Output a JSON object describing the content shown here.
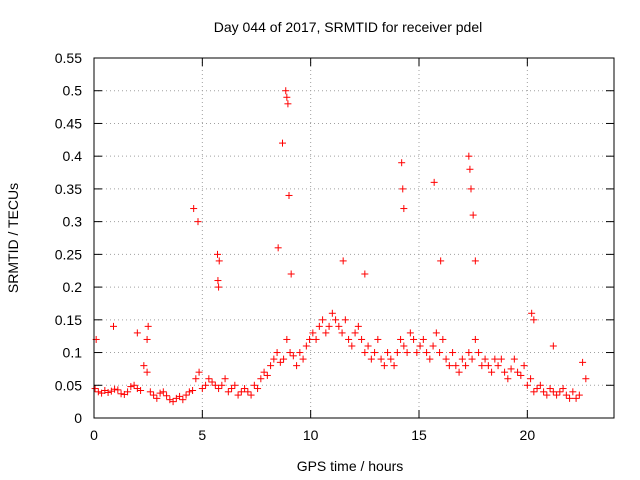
{
  "chart_data": {
    "type": "scatter",
    "title": "Day 044 of 2017, SRMTID for receiver pdel",
    "xlabel": "GPS time / hours",
    "ylabel": "SRMTID / TECUs",
    "xlim": [
      0,
      24
    ],
    "ylim": [
      0,
      0.55
    ],
    "xticks": [
      0,
      5,
      10,
      15,
      20
    ],
    "xtick_labels": [
      "0",
      "5",
      "10",
      "15",
      "20"
    ],
    "yticks": [
      0,
      0.05,
      0.1,
      0.15,
      0.2,
      0.25,
      0.3,
      0.35,
      0.4,
      0.45,
      0.5,
      0.55
    ],
    "ytick_labels": [
      "0",
      "0.05",
      "0.1",
      "0.15",
      "0.2",
      "0.25",
      "0.3",
      "0.35",
      "0.4",
      "0.45",
      "0.5",
      "0.55"
    ],
    "grid": true,
    "marker": "+",
    "color": "#ff0000",
    "series": [
      {
        "name": "SRMTID",
        "x": [
          0.05,
          0.2,
          0.35,
          0.5,
          0.65,
          0.8,
          0.95,
          1.1,
          1.25,
          1.4,
          1.55,
          1.7,
          1.85,
          2.0,
          2.15,
          2.3,
          2.45,
          2.6,
          2.75,
          2.9,
          3.05,
          3.2,
          3.35,
          3.5,
          3.65,
          3.8,
          3.95,
          4.1,
          4.25,
          4.4,
          4.55,
          4.7,
          4.85,
          5.0,
          5.15,
          5.3,
          5.45,
          5.6,
          5.75,
          5.9,
          6.05,
          6.2,
          6.35,
          6.5,
          6.65,
          6.8,
          6.95,
          7.1,
          7.25,
          7.4,
          7.55,
          7.7,
          7.85,
          8.0,
          8.15,
          8.3,
          8.45,
          8.6,
          8.75,
          8.9,
          9.05,
          9.2,
          9.35,
          9.5,
          9.65,
          9.8,
          9.95,
          10.1,
          10.25,
          10.4,
          10.55,
          10.7,
          10.85,
          11.0,
          11.15,
          11.3,
          11.45,
          11.6,
          11.75,
          11.9,
          12.05,
          12.2,
          12.35,
          12.5,
          12.65,
          12.8,
          12.95,
          13.1,
          13.25,
          13.4,
          13.55,
          13.7,
          13.85,
          14.0,
          14.15,
          14.3,
          14.45,
          14.6,
          14.75,
          14.9,
          15.05,
          15.2,
          15.35,
          15.5,
          15.65,
          15.8,
          15.95,
          16.1,
          16.25,
          16.4,
          16.55,
          16.7,
          16.85,
          17.0,
          17.15,
          17.3,
          17.45,
          17.6,
          17.75,
          17.9,
          18.05,
          18.2,
          18.35,
          18.5,
          18.65,
          18.8,
          18.95,
          19.1,
          19.25,
          19.4,
          19.55,
          19.7,
          19.85,
          20.0,
          20.15,
          20.3,
          20.45,
          20.6,
          20.75,
          20.9,
          21.05,
          21.2,
          21.35,
          21.5,
          21.65,
          21.8,
          21.95,
          22.1,
          22.25,
          22.4,
          22.55,
          22.7,
          0.1,
          0.9,
          2.0,
          2.45,
          2.5,
          4.6,
          4.8,
          5.7,
          5.72,
          5.75,
          5.78,
          8.5,
          8.7,
          8.85,
          8.9,
          8.95,
          9.0,
          9.1,
          11.5,
          12.5,
          14.2,
          14.25,
          14.3,
          15.7,
          16.0,
          17.3,
          17.35,
          17.4,
          17.5,
          17.6,
          20.2,
          20.3,
          21.2
        ],
        "y": [
          0.045,
          0.04,
          0.038,
          0.042,
          0.039,
          0.041,
          0.044,
          0.043,
          0.037,
          0.036,
          0.04,
          0.048,
          0.05,
          0.045,
          0.042,
          0.08,
          0.07,
          0.04,
          0.035,
          0.03,
          0.038,
          0.04,
          0.034,
          0.028,
          0.025,
          0.03,
          0.033,
          0.028,
          0.035,
          0.04,
          0.042,
          0.06,
          0.07,
          0.045,
          0.05,
          0.06,
          0.055,
          0.05,
          0.045,
          0.05,
          0.06,
          0.04,
          0.045,
          0.05,
          0.035,
          0.04,
          0.045,
          0.04,
          0.035,
          0.05,
          0.045,
          0.06,
          0.07,
          0.065,
          0.08,
          0.09,
          0.1,
          0.085,
          0.09,
          0.12,
          0.1,
          0.095,
          0.08,
          0.1,
          0.09,
          0.11,
          0.12,
          0.13,
          0.12,
          0.14,
          0.15,
          0.13,
          0.14,
          0.16,
          0.15,
          0.14,
          0.13,
          0.15,
          0.12,
          0.11,
          0.13,
          0.14,
          0.12,
          0.1,
          0.11,
          0.09,
          0.1,
          0.12,
          0.09,
          0.08,
          0.1,
          0.09,
          0.08,
          0.1,
          0.12,
          0.11,
          0.1,
          0.13,
          0.12,
          0.1,
          0.11,
          0.12,
          0.1,
          0.09,
          0.11,
          0.13,
          0.1,
          0.12,
          0.09,
          0.08,
          0.1,
          0.08,
          0.07,
          0.09,
          0.08,
          0.1,
          0.09,
          0.12,
          0.1,
          0.08,
          0.09,
          0.08,
          0.07,
          0.09,
          0.08,
          0.09,
          0.07,
          0.06,
          0.075,
          0.09,
          0.07,
          0.065,
          0.08,
          0.05,
          0.06,
          0.04,
          0.045,
          0.05,
          0.04,
          0.035,
          0.045,
          0.04,
          0.035,
          0.04,
          0.045,
          0.035,
          0.03,
          0.04,
          0.03,
          0.035,
          0.085,
          0.06,
          0.12,
          0.14,
          0.13,
          0.12,
          0.14,
          0.32,
          0.3,
          0.25,
          0.21,
          0.2,
          0.24,
          0.26,
          0.42,
          0.5,
          0.49,
          0.48,
          0.34,
          0.22,
          0.24,
          0.22,
          0.39,
          0.35,
          0.32,
          0.36,
          0.24,
          0.4,
          0.38,
          0.35,
          0.31,
          0.24,
          0.16,
          0.15,
          0.11
        ]
      }
    ]
  }
}
